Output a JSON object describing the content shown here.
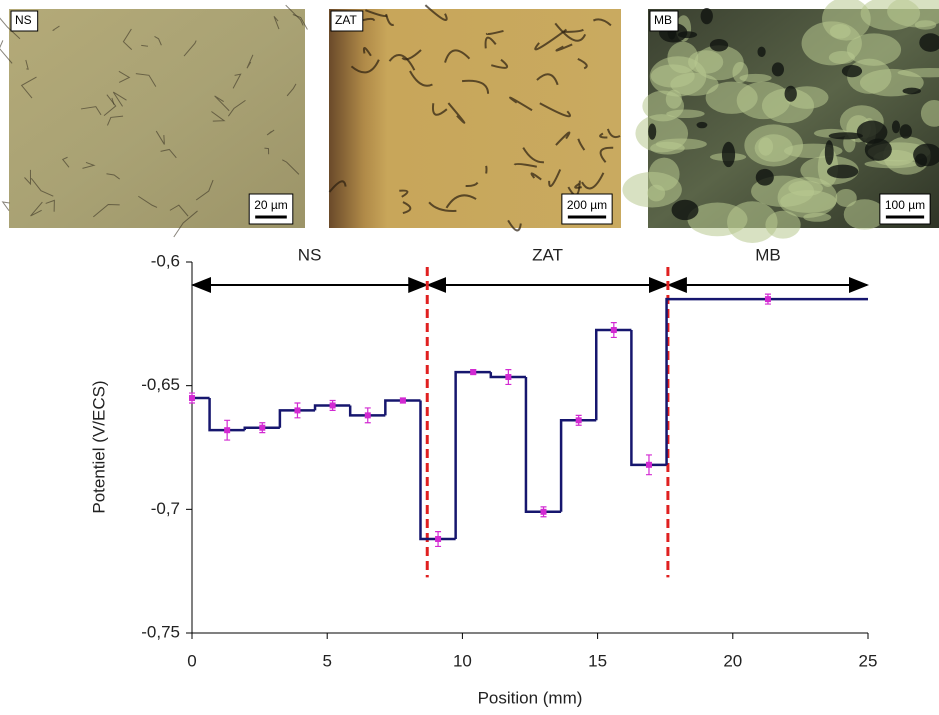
{
  "chart_data": {
    "type": "step",
    "micrographs": [
      {
        "label": "NS",
        "scale": "20 µm"
      },
      {
        "label": "ZAT",
        "scale": "200 µm"
      },
      {
        "label": "MB",
        "scale": "100 µm"
      }
    ],
    "zones": [
      {
        "label": "NS",
        "start": 0,
        "end": 8.7
      },
      {
        "label": "ZAT",
        "start": 8.7,
        "end": 17.6
      },
      {
        "label": "MB",
        "start": 17.6,
        "end": 25
      }
    ],
    "x_label": "Position (mm)",
    "y_label": "Potentiel (V/ECS)",
    "x": [
      0,
      1.3,
      2.6,
      3.9,
      5.2,
      6.5,
      7.8,
      9.1,
      10.4,
      11.7,
      13,
      14.3,
      15.6,
      16.9,
      21.3
    ],
    "values": [
      -0.655,
      -0.668,
      -0.667,
      -0.66,
      -0.658,
      -0.662,
      -0.656,
      -0.712,
      -0.6445,
      -0.6465,
      -0.701,
      -0.664,
      -0.6275,
      -0.682,
      -0.615
    ],
    "errors": [
      0.002,
      0.004,
      0.002,
      0.003,
      0.002,
      0.003,
      0.001,
      0.003,
      0.001,
      0.003,
      0.002,
      0.002,
      0.003,
      0.004,
      0.002
    ],
    "line_color": "#16166e",
    "marker_color": "#d22ad2",
    "boundary_color": "#e02020",
    "xlim": [
      0,
      25
    ],
    "xticks": [
      0,
      5,
      10,
      15,
      20,
      25
    ],
    "ylim": [
      -0.75,
      -0.6
    ],
    "yticks": [
      {
        "value": -0.75,
        "label": "-0,75"
      },
      {
        "value": -0.7,
        "label": "-0,7"
      },
      {
        "value": -0.65,
        "label": "-0,65"
      },
      {
        "value": -0.6,
        "label": "-0,6"
      }
    ],
    "grid": false
  }
}
